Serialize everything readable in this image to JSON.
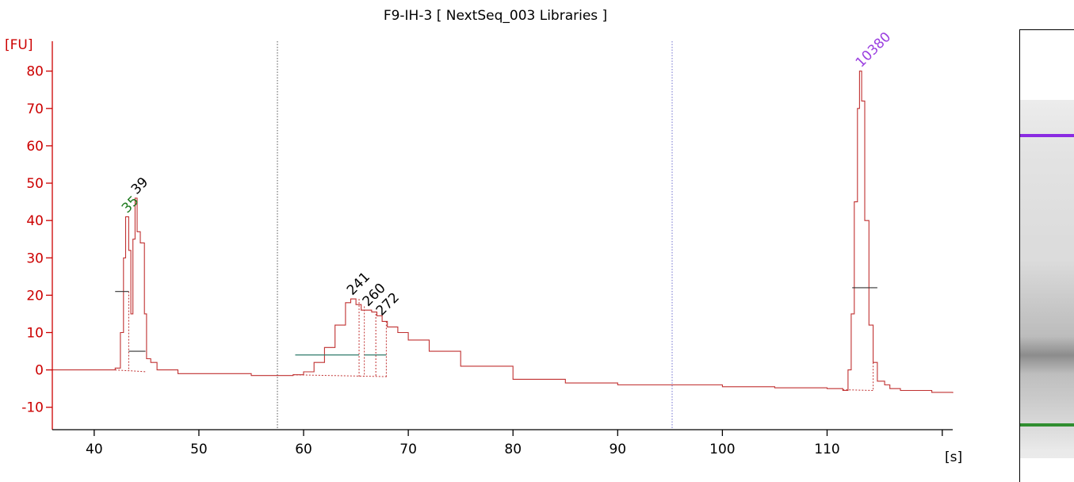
{
  "chart_data": {
    "type": "line",
    "title": "F9-IH-3  [ NextSeq_003 Libraries ]",
    "ylabel": "[FU]",
    "xlabel": "[s]",
    "xlim": [
      36,
      122
    ],
    "ylim": [
      -16,
      88
    ],
    "x_ticks": [
      40,
      50,
      60,
      70,
      80,
      90,
      100,
      110
    ],
    "y_ticks": [
      -10,
      0,
      10,
      20,
      30,
      40,
      50,
      60,
      70,
      80
    ],
    "markers": [
      57.5,
      95.2
    ],
    "series": [
      {
        "color": "#c03030",
        "points": [
          [
            36,
            0
          ],
          [
            41,
            0
          ],
          [
            42,
            0.5
          ],
          [
            42.5,
            10
          ],
          [
            42.8,
            30
          ],
          [
            43.0,
            41
          ],
          [
            43.3,
            32
          ],
          [
            43.5,
            15
          ],
          [
            43.7,
            35
          ],
          [
            43.9,
            46
          ],
          [
            44.1,
            37
          ],
          [
            44.4,
            34
          ],
          [
            44.8,
            15
          ],
          [
            45.0,
            3
          ],
          [
            45.4,
            2
          ],
          [
            45.8,
            2
          ],
          [
            46.0,
            0
          ],
          [
            48,
            -1
          ],
          [
            50,
            -1
          ],
          [
            55,
            -1.5
          ],
          [
            57,
            -1.5
          ],
          [
            59,
            -1.3
          ],
          [
            60,
            -0.5
          ],
          [
            61,
            2
          ],
          [
            62,
            6
          ],
          [
            63,
            12
          ],
          [
            64,
            18
          ],
          [
            64.5,
            19
          ],
          [
            65,
            17.5
          ],
          [
            65.5,
            16
          ],
          [
            66,
            16
          ],
          [
            66.5,
            15.5
          ],
          [
            67,
            14.5
          ],
          [
            67.5,
            13
          ],
          [
            68,
            11.5
          ],
          [
            69,
            10
          ],
          [
            70,
            8
          ],
          [
            72,
            5
          ],
          [
            75,
            1
          ],
          [
            80,
            -2.5
          ],
          [
            85,
            -3.5
          ],
          [
            90,
            -4
          ],
          [
            95,
            -4
          ],
          [
            100,
            -4.5
          ],
          [
            105,
            -4.8
          ],
          [
            110,
            -5
          ],
          [
            111.5,
            -5.5
          ],
          [
            112,
            0
          ],
          [
            112.3,
            15
          ],
          [
            112.6,
            45
          ],
          [
            112.9,
            70
          ],
          [
            113.1,
            80
          ],
          [
            113.3,
            72
          ],
          [
            113.6,
            40
          ],
          [
            114.0,
            12
          ],
          [
            114.4,
            2
          ],
          [
            114.8,
            -3
          ],
          [
            115.5,
            -4
          ],
          [
            116,
            -5
          ],
          [
            117,
            -5.5
          ],
          [
            120,
            -6
          ],
          [
            122,
            -6.2
          ]
        ]
      }
    ],
    "peaks": [
      {
        "label": "35",
        "x": 43.0,
        "y": 41,
        "color": "#1f7a1f"
      },
      {
        "label": "39",
        "x": 43.9,
        "y": 46,
        "color": "#000000"
      },
      {
        "label": "241",
        "x": 64.5,
        "y": 19,
        "color": "#000000"
      },
      {
        "label": "260",
        "x": 66.0,
        "y": 16,
        "color": "#000000"
      },
      {
        "label": "272",
        "x": 67.3,
        "y": 13.5,
        "color": "#000000"
      },
      {
        "label": "10380",
        "x": 113.1,
        "y": 80,
        "color": "#9b40e0"
      }
    ],
    "fwhm_bars": [
      {
        "x1": 42.0,
        "x2": 43.3,
        "y": 21,
        "color": "#333333"
      },
      {
        "x1": 43.3,
        "x2": 44.9,
        "y": 5,
        "color": "#333333"
      },
      {
        "x1": 59.2,
        "x2": 65.3,
        "y": 4,
        "color": "#2e7a6a"
      },
      {
        "x1": 65.8,
        "x2": 67.9,
        "y": 4,
        "color": "#2e7a6a"
      },
      {
        "x1": 112.4,
        "x2": 114.8,
        "y": 22,
        "color": "#333333"
      }
    ],
    "peak_drops": [
      {
        "x": 43.3,
        "y_top": 21,
        "y_bottom": 0
      },
      {
        "x": 65.3,
        "y_top": 19,
        "y_bottom": -1.8
      },
      {
        "x": 65.8,
        "y_top": 17,
        "y_bottom": -1.8
      },
      {
        "x": 66.9,
        "y_top": 15,
        "y_bottom": -1.8
      },
      {
        "x": 67.9,
        "y_top": 13,
        "y_bottom": -1.8
      },
      {
        "x": 114.4,
        "y_top": 2,
        "y_bottom": -5.5
      }
    ],
    "baselines": [
      {
        "x1": 42.0,
        "y1": 0,
        "x2": 45.0,
        "y2": -0.5
      },
      {
        "x1": 59.0,
        "y1": -1.3,
        "x2": 68.0,
        "y2": -1.8
      },
      {
        "x1": 111.5,
        "y1": -5.3,
        "x2": 114.4,
        "y2": -5.5
      }
    ],
    "gel_bands": [
      {
        "y": 79,
        "color": "#8a2be2",
        "thickness": 4
      },
      {
        "y": 0,
        "color": "#1e8c1e",
        "thickness": 4
      },
      {
        "y": 19,
        "color": "#8a8a8a",
        "thickness": 26,
        "diffuse": true
      }
    ],
    "grid": false,
    "legend": "none"
  }
}
